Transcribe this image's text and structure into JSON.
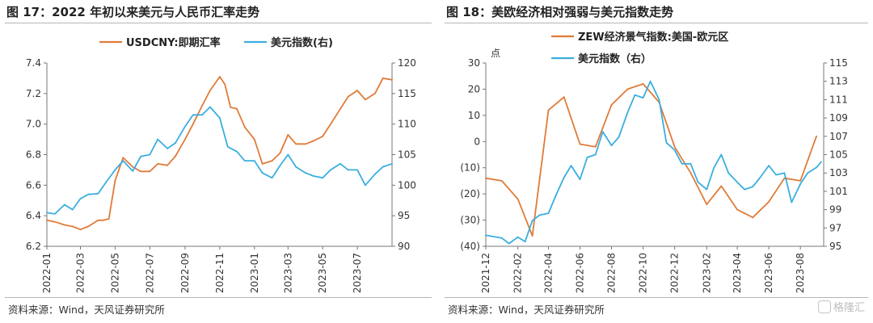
{
  "colors": {
    "orange": "#E07B39",
    "blue": "#3BAEDF"
  },
  "left": {
    "title": "图 17：2022 年初以来美元与人民币汇率走势",
    "source": "资料来源：Wind，天风证券研究所",
    "chart_data": {
      "type": "line",
      "x_tick_labels": [
        "2022-01",
        "2022-03",
        "2022-05",
        "2022-07",
        "2022-09",
        "2022-11",
        "2023-01",
        "2023-03",
        "2023-05",
        "2023-07"
      ],
      "x_range": [
        "2022-01-01",
        "2023-08-31"
      ],
      "y_left_ticks": [
        "6.2",
        "6.4",
        "6.6",
        "6.8",
        "7.0",
        "7.2",
        "7.4"
      ],
      "y_left_range": [
        6.2,
        7.4
      ],
      "y_right_ticks": [
        "90",
        "95",
        "100",
        "105",
        "110",
        "115",
        "120"
      ],
      "y_right_range": [
        90,
        120
      ],
      "legend_position": "top",
      "series": [
        {
          "name": "USDCNY:即期汇率",
          "axis": "left",
          "color": "#E07B39",
          "x": [
            "2022-01-01",
            "2022-01-15",
            "2022-02-01",
            "2022-02-15",
            "2022-03-01",
            "2022-03-15",
            "2022-04-01",
            "2022-04-10",
            "2022-04-20",
            "2022-05-01",
            "2022-05-15",
            "2022-06-01",
            "2022-06-15",
            "2022-07-01",
            "2022-07-15",
            "2022-08-01",
            "2022-08-15",
            "2022-09-01",
            "2022-09-15",
            "2022-10-01",
            "2022-10-15",
            "2022-11-01",
            "2022-11-10",
            "2022-11-20",
            "2022-12-01",
            "2022-12-15",
            "2023-01-01",
            "2023-01-15",
            "2023-02-01",
            "2023-02-15",
            "2023-03-01",
            "2023-03-15",
            "2023-04-01",
            "2023-04-15",
            "2023-05-01",
            "2023-05-15",
            "2023-06-01",
            "2023-06-15",
            "2023-07-01",
            "2023-07-15",
            "2023-08-01",
            "2023-08-15",
            "2023-08-31"
          ],
          "values": [
            6.37,
            6.36,
            6.34,
            6.33,
            6.31,
            6.33,
            6.37,
            6.37,
            6.38,
            6.63,
            6.78,
            6.72,
            6.69,
            6.69,
            6.74,
            6.73,
            6.79,
            6.9,
            7.0,
            7.12,
            7.22,
            7.31,
            7.26,
            7.11,
            7.1,
            6.98,
            6.9,
            6.74,
            6.76,
            6.81,
            6.93,
            6.87,
            6.87,
            6.89,
            6.92,
            7.0,
            7.1,
            7.18,
            7.22,
            7.16,
            7.2,
            7.3,
            7.29
          ]
        },
        {
          "name": "美元指数(右)",
          "axis": "right",
          "color": "#3BAEDF",
          "x": [
            "2022-01-01",
            "2022-01-15",
            "2022-02-01",
            "2022-02-15",
            "2022-03-01",
            "2022-03-15",
            "2022-04-01",
            "2022-04-15",
            "2022-05-01",
            "2022-05-15",
            "2022-06-01",
            "2022-06-15",
            "2022-07-01",
            "2022-07-15",
            "2022-08-01",
            "2022-08-15",
            "2022-09-01",
            "2022-09-15",
            "2022-10-01",
            "2022-10-15",
            "2022-11-01",
            "2022-11-15",
            "2022-12-01",
            "2022-12-15",
            "2023-01-01",
            "2023-01-15",
            "2023-02-01",
            "2023-02-15",
            "2023-03-01",
            "2023-03-15",
            "2023-04-01",
            "2023-04-15",
            "2023-05-01",
            "2023-05-15",
            "2023-06-01",
            "2023-06-15",
            "2023-07-01",
            "2023-07-15",
            "2023-08-01",
            "2023-08-15",
            "2023-08-31"
          ],
          "values": [
            95.5,
            95.3,
            96.8,
            96.0,
            97.8,
            98.5,
            98.6,
            100.5,
            102.5,
            104.0,
            102.3,
            104.7,
            105.0,
            107.5,
            106.0,
            106.9,
            109.6,
            111.5,
            111.5,
            112.8,
            111.0,
            106.3,
            105.5,
            104.0,
            104.0,
            102.0,
            101.2,
            103.2,
            105.0,
            103.0,
            102.0,
            101.5,
            101.2,
            102.5,
            103.5,
            102.5,
            102.5,
            100.0,
            101.8,
            103.0,
            103.5
          ]
        }
      ]
    }
  },
  "right": {
    "title": "图 18：美欧经济相对强弱与美元指数走势",
    "source": "资料来源：Wind，天风证券研究所",
    "chart_data": {
      "type": "line",
      "left_axis_unit": "点",
      "x_tick_labels": [
        "2021-12",
        "2022-02",
        "2022-04",
        "2022-06",
        "2022-08",
        "2022-10",
        "2022-12",
        "2023-02",
        "2023-04",
        "2023-06",
        "2023-08"
      ],
      "x_range": [
        "2021-12-01",
        "2023-09-15"
      ],
      "y_left_ticks": [
        "(40)",
        "(30)",
        "(20)",
        "(10)",
        "0",
        "10",
        "20",
        "30"
      ],
      "y_left_range": [
        -40,
        30
      ],
      "y_right_ticks": [
        "95",
        "97",
        "99",
        "101",
        "103",
        "105",
        "107",
        "109",
        "111",
        "113",
        "115"
      ],
      "y_right_range": [
        95,
        115
      ],
      "legend_position": "top",
      "series": [
        {
          "name": "ZEW经济景气指数:美国-欧元区",
          "axis": "left",
          "color": "#E07B39",
          "x": [
            "2021-12-01",
            "2022-01-01",
            "2022-02-01",
            "2022-03-01",
            "2022-04-01",
            "2022-05-01",
            "2022-06-01",
            "2022-07-01",
            "2022-08-01",
            "2022-09-01",
            "2022-10-01",
            "2022-11-01",
            "2022-12-01",
            "2023-01-01",
            "2023-02-01",
            "2023-03-01",
            "2023-04-01",
            "2023-05-01",
            "2023-06-01",
            "2023-07-01",
            "2023-08-01",
            "2023-09-01"
          ],
          "values": [
            -14,
            -15,
            -22,
            -36,
            12,
            17,
            -1,
            -2,
            14,
            20,
            22,
            15,
            -2,
            -12,
            -24,
            -17,
            -26,
            -29,
            -23,
            -14,
            -15,
            2
          ]
        },
        {
          "name": "美元指数（右）",
          "axis": "right",
          "color": "#3BAEDF",
          "x": [
            "2021-12-01",
            "2022-01-01",
            "2022-01-15",
            "2022-02-01",
            "2022-02-15",
            "2022-03-01",
            "2022-03-15",
            "2022-04-01",
            "2022-04-15",
            "2022-05-01",
            "2022-05-15",
            "2022-06-01",
            "2022-06-15",
            "2022-07-01",
            "2022-07-15",
            "2022-08-01",
            "2022-08-15",
            "2022-09-01",
            "2022-09-15",
            "2022-10-01",
            "2022-10-15",
            "2022-11-01",
            "2022-11-15",
            "2022-12-01",
            "2022-12-15",
            "2023-01-01",
            "2023-01-15",
            "2023-02-01",
            "2023-02-15",
            "2023-03-01",
            "2023-03-15",
            "2023-04-01",
            "2023-04-15",
            "2023-05-01",
            "2023-05-15",
            "2023-06-01",
            "2023-06-15",
            "2023-07-01",
            "2023-07-15",
            "2023-08-01",
            "2023-08-15",
            "2023-09-01",
            "2023-09-10"
          ],
          "values": [
            96.2,
            95.9,
            95.3,
            96.0,
            95.5,
            97.8,
            98.4,
            98.6,
            100.5,
            102.5,
            103.8,
            102.3,
            104.7,
            105.0,
            107.5,
            106.0,
            106.9,
            109.6,
            111.5,
            111.2,
            113.0,
            111.0,
            106.3,
            105.5,
            104.0,
            104.0,
            102.0,
            101.2,
            103.6,
            105.0,
            103.0,
            102.0,
            101.2,
            101.5,
            102.5,
            103.8,
            102.8,
            103.0,
            99.8,
            101.8,
            103.0,
            103.6,
            104.2
          ]
        }
      ]
    }
  },
  "watermark": "格隆汇"
}
